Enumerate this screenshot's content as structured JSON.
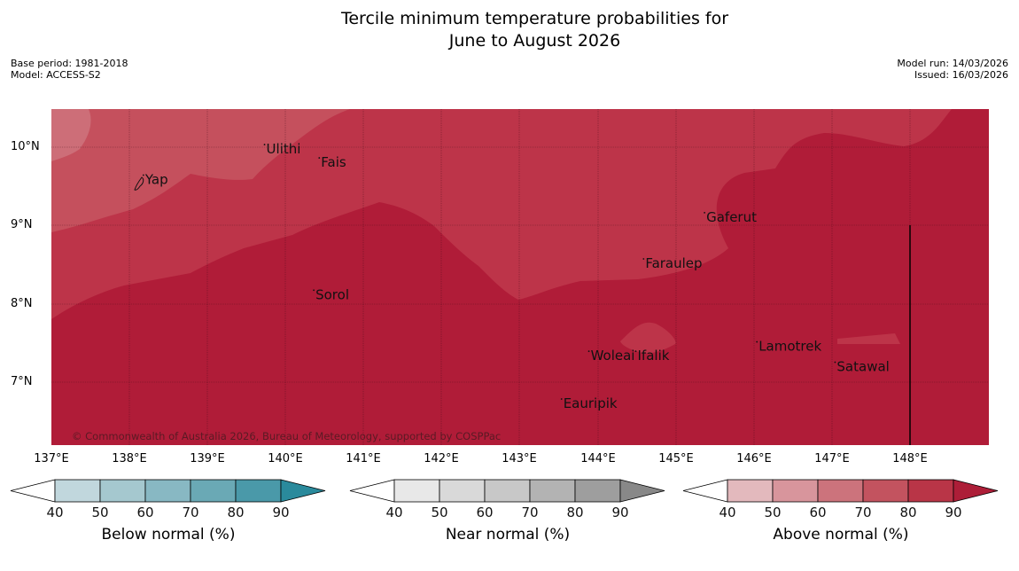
{
  "title": {
    "line1": "Tercile minimum temperature probabilities for",
    "line2": "June to August 2026"
  },
  "meta": {
    "base_period": "Base period: 1981-2018",
    "model": "Model: ACCESS-S2",
    "model_run": "Model run: 14/03/2026",
    "issued": "Issued: 16/03/2026"
  },
  "map": {
    "latitudes": [
      "10°N",
      "9°N",
      "8°N",
      "7°N"
    ],
    "longitudes": [
      "137°E",
      "138°E",
      "139°E",
      "140°E",
      "141°E",
      "142°E",
      "143°E",
      "144°E",
      "145°E",
      "146°E",
      "147°E",
      "148°E"
    ],
    "places": [
      {
        "name": "Yap",
        "lon": 138.2,
        "lat": 9.53
      },
      {
        "name": "Ulithi",
        "lon": 139.75,
        "lat": 9.92
      },
      {
        "name": "Fais",
        "lon": 140.45,
        "lat": 9.75
      },
      {
        "name": "Gaferut",
        "lon": 145.38,
        "lat": 9.05
      },
      {
        "name": "Faraulep",
        "lon": 144.6,
        "lat": 8.46
      },
      {
        "name": "Sorol",
        "lon": 140.38,
        "lat": 8.06
      },
      {
        "name": "Lamotrek",
        "lon": 146.05,
        "lat": 7.4
      },
      {
        "name": "Woleai",
        "lon": 143.9,
        "lat": 7.28
      },
      {
        "name": "Ifalik",
        "lon": 144.5,
        "lat": 7.28
      },
      {
        "name": "Satawal",
        "lon": 147.05,
        "lat": 7.14
      },
      {
        "name": "Eauripik",
        "lon": 143.55,
        "lat": 6.67
      }
    ],
    "copyright": "© Commonwealth of Australia 2026, Bureau of Meteorology, supported by COSPPac",
    "colors": {
      "above_90": "#b01c38",
      "above_80": "#bd3449",
      "above_70": "#c5505d",
      "above_60": "#cd6e78",
      "above_50": "#d38f95"
    }
  },
  "colorbars": [
    {
      "label": "Below normal (%)",
      "ticks": [
        "40",
        "50",
        "60",
        "70",
        "80",
        "90"
      ],
      "colors": [
        "#ffffff",
        "#c1d7dd",
        "#a5c8cf",
        "#88b8c3",
        "#6aa9b5",
        "#4a99a9",
        "#2a8a9c"
      ]
    },
    {
      "label": "Near normal (%)",
      "ticks": [
        "40",
        "50",
        "60",
        "70",
        "80",
        "90"
      ],
      "colors": [
        "#ffffff",
        "#e8e8e8",
        "#d9d9d9",
        "#c8c8c8",
        "#b3b3b3",
        "#9e9e9e",
        "#888888"
      ]
    },
    {
      "label": "Above normal (%)",
      "ticks": [
        "40",
        "50",
        "60",
        "70",
        "80",
        "90"
      ],
      "colors": [
        "#ffffff",
        "#e3b9bd",
        "#d8959c",
        "#cc737c",
        "#c3535f",
        "#b93547",
        "#ad1e38"
      ]
    }
  ]
}
